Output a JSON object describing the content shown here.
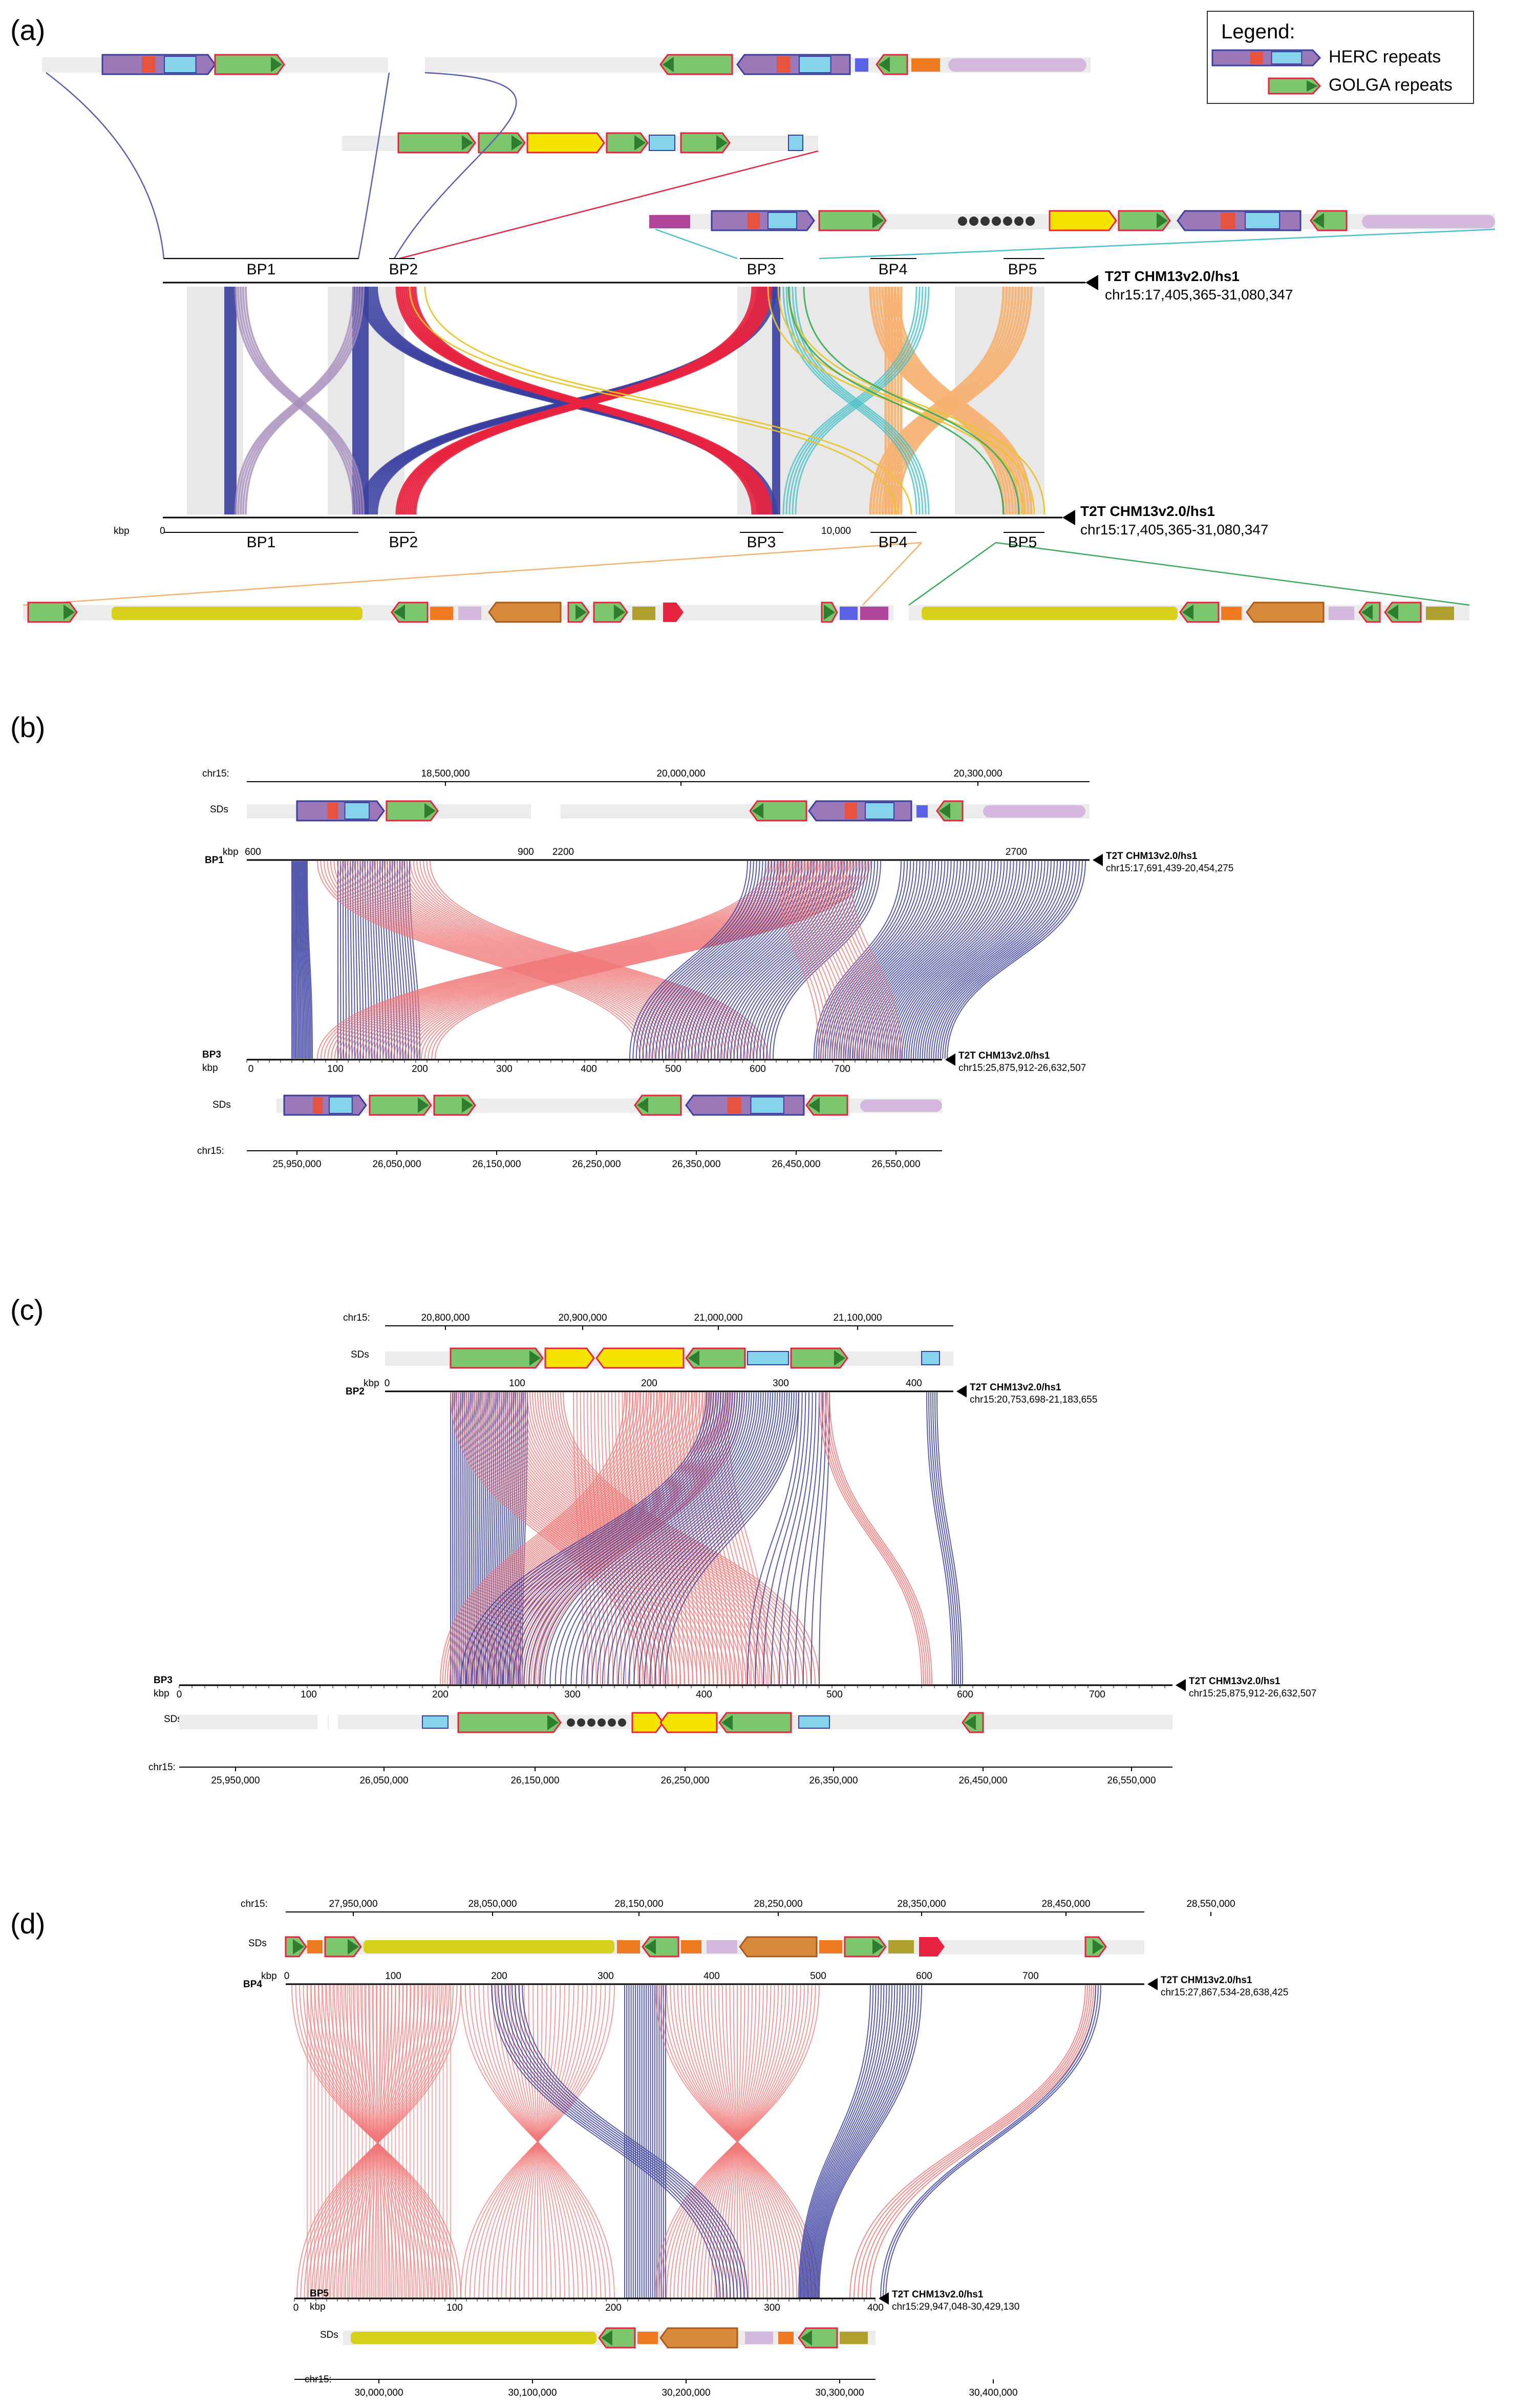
{
  "panels": [
    {
      "label": "(a)"
    },
    {
      "label": "(b)"
    },
    {
      "label": "(c)"
    },
    {
      "label": "(d)"
    }
  ],
  "legend": {
    "title": "Legend:",
    "items": [
      "HERC repeats",
      "GOLGA repeats"
    ]
  },
  "colors": {
    "herc": "#3a3fa0",
    "golga": "#f07878",
    "red": "#e8233f",
    "peach": "#f6b070",
    "teal": "#4bc0c8",
    "lilac": "#9a7ab0",
    "gold": "#e7c42a",
    "yellow": "#f5e400",
    "olive": "#d6d01a",
    "green_line": "#3aaa5a",
    "sd_bg": "#ececec"
  },
  "panel_a": {
    "bp_labels": [
      "BP1",
      "BP2",
      "BP3",
      "BP4",
      "BP5"
    ],
    "top_ref": {
      "name": "T2T CHM13v2.0/hs1",
      "region": "chr15:17,405,365-31,080,347"
    },
    "bottom_ref": {
      "name": "T2T CHM13v2.0/hs1",
      "region": "chr15:17,405,365-31,080,347"
    },
    "axis": {
      "unit": "kbp",
      "ticks": [
        "0",
        "10,000"
      ]
    }
  },
  "panel_b": {
    "chr_label": "chr15:",
    "sd_label": "SDs",
    "top_chr_ticks": [
      "18,500,000",
      "20,000,000",
      "20,300,000"
    ],
    "top_kbp_label": "kbp",
    "top_kbp_ticks": [
      "600",
      "900",
      "2200",
      "2700"
    ],
    "top_bp": "BP1",
    "top_ref": {
      "name": "T2T CHM13v2.0/hs1",
      "region": "chr15:17,691,439-20,454,275"
    },
    "bottom_bp": "BP3",
    "bottom_kbp_label": "kbp",
    "bottom_kbp_ticks": [
      "0",
      "100",
      "200",
      "300",
      "400",
      "500",
      "600",
      "700"
    ],
    "bottom_ref": {
      "name": "T2T CHM13v2.0/hs1",
      "region": "chr15:25,875,912-26,632,507"
    },
    "bottom_chr_ticks": [
      "25,950,000",
      "26,050,000",
      "26,150,000",
      "26,250,000",
      "26,350,000",
      "26,450,000",
      "26,550,000"
    ]
  },
  "panel_c": {
    "chr_label": "chr15:",
    "sd_label": "SDs",
    "top_chr_ticks": [
      "20,800,000",
      "20,900,000",
      "21,000,000",
      "21,100,000"
    ],
    "top_kbp_label": "kbp",
    "top_kbp_ticks": [
      "0",
      "100",
      "200",
      "300",
      "400"
    ],
    "top_bp": "BP2",
    "top_ref": {
      "name": "T2T CHM13v2.0/hs1",
      "region": "chr15:20,753,698-21,183,655"
    },
    "bottom_bp": "BP3",
    "bottom_kbp_label": "kbp",
    "bottom_kbp_ticks": [
      "0",
      "100",
      "200",
      "300",
      "400",
      "500",
      "600",
      "700"
    ],
    "bottom_ref": {
      "name": "T2T CHM13v2.0/hs1",
      "region": "chr15:25,875,912-26,632,507"
    },
    "bottom_chr_ticks": [
      "25,950,000",
      "26,050,000",
      "26,150,000",
      "26,250,000",
      "26,350,000",
      "26,450,000",
      "26,550,000"
    ]
  },
  "panel_d": {
    "chr_label": "chr15:",
    "sd_label": "SDs",
    "top_chr_ticks": [
      "27,950,000",
      "28,050,000",
      "28,150,000",
      "28,250,000",
      "28,350,000",
      "28,450,000",
      "28,550,000"
    ],
    "top_kbp_label": "kbp",
    "top_kbp_ticks": [
      "0",
      "100",
      "200",
      "300",
      "400",
      "500",
      "600",
      "700"
    ],
    "top_bp": "BP4",
    "top_ref": {
      "name": "T2T CHM13v2.0/hs1",
      "region": "chr15:27,867,534-28,638,425"
    },
    "bottom_bp": "BP5",
    "bottom_kbp_label": "kbp",
    "bottom_kbp_ticks": [
      "0",
      "100",
      "200",
      "300",
      "400"
    ],
    "bottom_ref": {
      "name": "T2T CHM13v2.0/hs1",
      "region": "chr15:29,947,048-30,429,130"
    },
    "bottom_chr_ticks": [
      "30,000,000",
      "30,100,000",
      "30,200,000",
      "30,300,000",
      "30,400,000"
    ]
  }
}
